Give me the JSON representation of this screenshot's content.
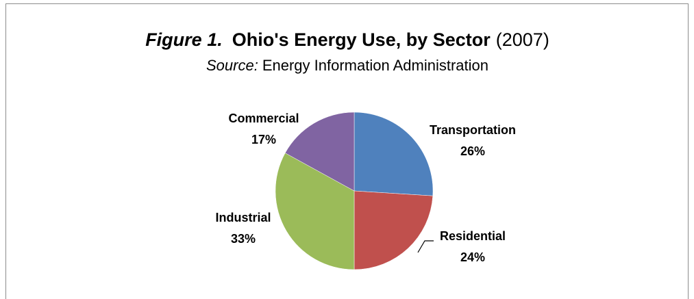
{
  "chart_data": {
    "type": "pie",
    "title": [
      "Figure 1.",
      "Ohio's Energy Use, by Sector",
      "(2007)"
    ],
    "subtitle": [
      "Source:",
      "Energy Information Administration"
    ],
    "categories": [
      "Transportation",
      "Residential",
      "Industrial",
      "Commercial"
    ],
    "values": [
      26,
      24,
      33,
      17
    ],
    "value_labels": [
      "26%",
      "24%",
      "33%",
      "17%"
    ],
    "colors": [
      "#4f81bd",
      "#c0504d",
      "#9bbb59",
      "#8064a2"
    ]
  }
}
